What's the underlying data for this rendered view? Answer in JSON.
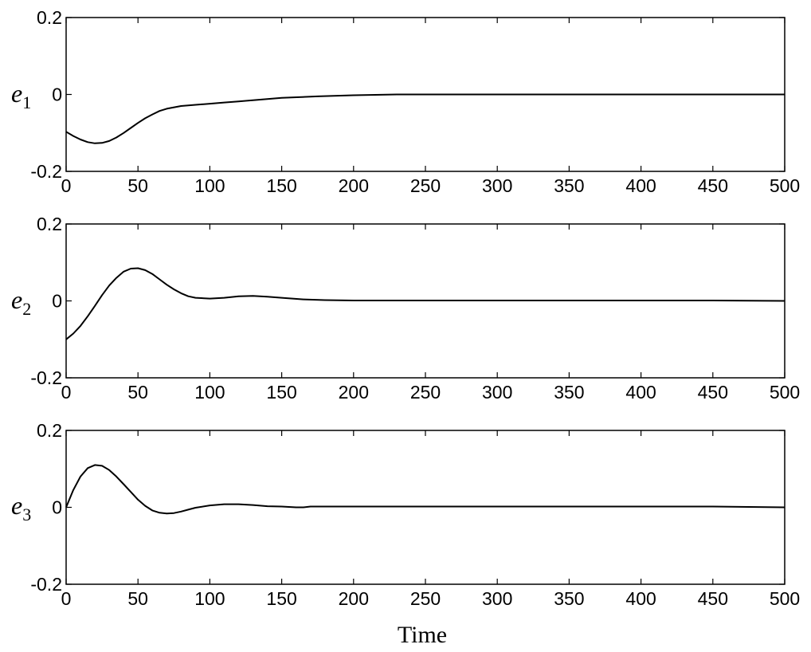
{
  "chart_data": [
    {
      "type": "line",
      "ylabel": "e",
      "ylabel_sub": "1",
      "xlabel": "",
      "xlim": [
        0,
        500
      ],
      "ylim": [
        -0.2,
        0.2
      ],
      "x_ticks": [
        0,
        50,
        100,
        150,
        200,
        250,
        300,
        350,
        400,
        450,
        500
      ],
      "x_tick_labels": [
        "0",
        "50",
        "100",
        "150",
        "200",
        "250",
        "300",
        "350",
        "400",
        "450",
        "500"
      ],
      "y_ticks": [
        -0.2,
        0,
        0.2
      ],
      "y_tick_labels": [
        "-0.2",
        "0",
        "0.2"
      ],
      "grid": false,
      "series": [
        {
          "x": [
            0,
            5,
            10,
            15,
            20,
            25,
            30,
            35,
            40,
            45,
            50,
            55,
            60,
            65,
            70,
            80,
            90,
            100,
            110,
            120,
            130,
            140,
            150,
            175,
            200,
            230,
            250,
            300,
            350,
            400,
            450,
            500
          ],
          "values": [
            -0.097,
            -0.108,
            -0.117,
            -0.124,
            -0.127,
            -0.126,
            -0.121,
            -0.112,
            -0.1,
            -0.087,
            -0.074,
            -0.062,
            -0.052,
            -0.043,
            -0.037,
            -0.03,
            -0.027,
            -0.024,
            -0.021,
            -0.018,
            -0.015,
            -0.012,
            -0.009,
            -0.005,
            -0.002,
            0.0,
            0.0,
            0.0,
            0.0,
            0.0,
            0.0,
            0.0
          ]
        }
      ]
    },
    {
      "type": "line",
      "ylabel": "e",
      "ylabel_sub": "2",
      "xlabel": "",
      "xlim": [
        0,
        500
      ],
      "ylim": [
        -0.2,
        0.2
      ],
      "x_ticks": [
        0,
        50,
        100,
        150,
        200,
        250,
        300,
        350,
        400,
        450,
        500
      ],
      "x_tick_labels": [
        "0",
        "50",
        "100",
        "150",
        "200",
        "250",
        "300",
        "350",
        "400",
        "450",
        "500"
      ],
      "y_ticks": [
        -0.2,
        0,
        0.2
      ],
      "y_tick_labels": [
        "-0.2",
        "0",
        "0.2"
      ],
      "grid": false,
      "series": [
        {
          "x": [
            0,
            5,
            10,
            15,
            20,
            25,
            30,
            35,
            40,
            45,
            50,
            55,
            60,
            65,
            70,
            75,
            80,
            85,
            90,
            100,
            110,
            120,
            130,
            140,
            150,
            165,
            180,
            200,
            250,
            300,
            350,
            400,
            450,
            500
          ],
          "values": [
            -0.1,
            -0.085,
            -0.065,
            -0.04,
            -0.013,
            0.015,
            0.04,
            0.06,
            0.076,
            0.084,
            0.085,
            0.08,
            0.07,
            0.056,
            0.042,
            0.03,
            0.02,
            0.012,
            0.008,
            0.006,
            0.008,
            0.012,
            0.013,
            0.011,
            0.008,
            0.004,
            0.002,
            0.001,
            0.001,
            0.001,
            0.001,
            0.001,
            0.001,
            0.0
          ]
        }
      ]
    },
    {
      "type": "line",
      "ylabel": "e",
      "ylabel_sub": "3",
      "xlabel": "Time",
      "xlim": [
        0,
        500
      ],
      "ylim": [
        -0.2,
        0.2
      ],
      "x_ticks": [
        0,
        50,
        100,
        150,
        200,
        250,
        300,
        350,
        400,
        450,
        500
      ],
      "x_tick_labels": [
        "0",
        "50",
        "100",
        "150",
        "200",
        "250",
        "300",
        "350",
        "400",
        "450",
        "500"
      ],
      "y_ticks": [
        -0.2,
        0,
        0.2
      ],
      "y_tick_labels": [
        "-0.2",
        "0",
        "0.2"
      ],
      "grid": false,
      "series": [
        {
          "x": [
            0,
            5,
            10,
            15,
            20,
            25,
            30,
            35,
            40,
            45,
            50,
            55,
            60,
            65,
            70,
            75,
            80,
            85,
            90,
            100,
            110,
            120,
            130,
            140,
            150,
            160,
            165,
            170,
            200,
            250,
            300,
            350,
            400,
            450,
            500
          ],
          "values": [
            0.0,
            0.045,
            0.08,
            0.102,
            0.11,
            0.108,
            0.097,
            0.08,
            0.06,
            0.04,
            0.02,
            0.004,
            -0.008,
            -0.014,
            -0.016,
            -0.015,
            -0.011,
            -0.006,
            -0.001,
            0.005,
            0.008,
            0.008,
            0.006,
            0.003,
            0.002,
            0.0,
            0.0,
            0.002,
            0.002,
            0.002,
            0.002,
            0.002,
            0.002,
            0.002,
            0.0
          ]
        }
      ]
    }
  ]
}
